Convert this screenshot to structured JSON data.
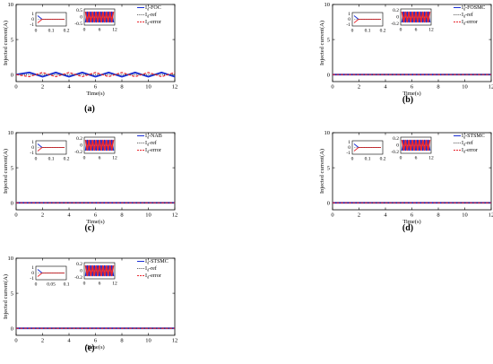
{
  "figure": {
    "panels": [
      {
        "id": "a",
        "caption": "(a)",
        "method": "FOC"
      },
      {
        "id": "b",
        "caption": "(b)",
        "method": "FOSMC"
      },
      {
        "id": "c",
        "caption": "(c)",
        "method": "NAB"
      },
      {
        "id": "d",
        "caption": "(d)",
        "method": "STSMC"
      },
      {
        "id": "e",
        "caption": "(e)",
        "method": "STSMC"
      }
    ]
  },
  "chart_data": [
    {
      "panel": "a",
      "type": "line",
      "ylabel": "Injected current(A)",
      "xlabel": "Time(s)",
      "xlim": [
        0,
        12
      ],
      "ylim": [
        -1,
        10
      ],
      "xticks": [
        "0",
        "2",
        "4",
        "6",
        "8",
        "10",
        "12"
      ],
      "yticks": [
        "0",
        "5",
        "10"
      ],
      "legend": {
        "placement": "top-right",
        "entries": [
          {
            "sym": "I",
            "sub": "d",
            "rest": "FOC",
            "color": "#1a2fd6",
            "style": "solid"
          },
          {
            "sym": "I",
            "sub": "d",
            "rest": "ref",
            "color": "#444444",
            "style": "dotted"
          },
          {
            "sym": "I",
            "sub": "d",
            "rest": "error",
            "color": "#e8282f",
            "style": "dashed"
          }
        ]
      },
      "series": [
        {
          "name": "FOC",
          "color": "#1a2fd6",
          "x": [
            0,
            1,
            2,
            3,
            4,
            5,
            6,
            7,
            8,
            9,
            10,
            11,
            12
          ],
          "values": [
            0,
            0.3,
            -0.3,
            0.3,
            -0.3,
            0.3,
            -0.3,
            0.3,
            -0.3,
            0.3,
            -0.3,
            0.3,
            -0.3
          ]
        },
        {
          "name": "ref",
          "color": "#444444",
          "x": [
            0,
            12
          ],
          "values": [
            0,
            0
          ]
        },
        {
          "name": "error",
          "color": "#e8282f",
          "x": [
            0,
            1,
            2,
            3,
            4,
            5,
            6,
            7,
            8,
            9,
            10,
            11,
            12
          ],
          "values": [
            0,
            -0.3,
            0.3,
            -0.3,
            0.3,
            -0.3,
            0.3,
            -0.3,
            0.3,
            -0.3,
            0.3,
            -0.3,
            0.3
          ]
        }
      ],
      "inset1": {
        "xticks": [
          "0",
          "0.1",
          "0.2"
        ],
        "yticks": [
          "1",
          "0",
          "-1"
        ]
      },
      "inset2": {
        "xticks": [
          "0",
          "6",
          "12"
        ],
        "yticks": [
          "0.5",
          "0",
          "-0.5"
        ]
      }
    },
    {
      "panel": "b",
      "type": "line",
      "ylabel": "Injected current(A)",
      "xlabel": "Time(s)",
      "xlim": [
        0,
        12
      ],
      "ylim": [
        -1,
        10
      ],
      "xticks": [
        "0",
        "2",
        "4",
        "6",
        "8",
        "10",
        "12"
      ],
      "yticks": [
        "0",
        "5",
        "10"
      ],
      "legend": {
        "placement": "top-right",
        "entries": [
          {
            "sym": "I",
            "sub": "d",
            "rest": "FOSMC",
            "color": "#1a2fd6",
            "style": "solid"
          },
          {
            "sym": "I",
            "sub": "d",
            "rest": "ref",
            "color": "#444444",
            "style": "dotted"
          },
          {
            "sym": "I",
            "sub": "d",
            "rest": "error",
            "color": "#e8282f",
            "style": "dashed"
          }
        ]
      },
      "series": [
        {
          "name": "FOSMC",
          "color": "#1a2fd6",
          "x": [
            0,
            12
          ],
          "values": [
            0,
            0
          ]
        },
        {
          "name": "ref",
          "color": "#444444",
          "x": [
            0,
            12
          ],
          "values": [
            0,
            0
          ]
        },
        {
          "name": "error",
          "color": "#e8282f",
          "x": [
            0,
            12
          ],
          "values": [
            0,
            0
          ]
        }
      ],
      "inset1": {
        "xticks": [
          "0",
          "0.1",
          "0.2"
        ],
        "yticks": [
          "1",
          "0",
          "-1"
        ]
      },
      "inset2": {
        "xticks": [
          "0",
          "6",
          "12"
        ],
        "yticks": [
          "0.2",
          "0",
          "-0.2"
        ]
      }
    },
    {
      "panel": "c",
      "type": "line",
      "ylabel": "Injected current(A)",
      "xlabel": "Time(s)",
      "xlim": [
        0,
        12
      ],
      "ylim": [
        -1,
        10
      ],
      "xticks": [
        "0",
        "2",
        "4",
        "6",
        "8",
        "10",
        "12"
      ],
      "yticks": [
        "0",
        "5",
        "10"
      ],
      "legend": {
        "placement": "top-right",
        "entries": [
          {
            "sym": "I",
            "sub": "d",
            "rest": "NAB",
            "color": "#1a2fd6",
            "style": "solid"
          },
          {
            "sym": "I",
            "sub": "d",
            "rest": "ref",
            "color": "#444444",
            "style": "dotted"
          },
          {
            "sym": "I",
            "sub": "d",
            "rest": "error",
            "color": "#e8282f",
            "style": "dashed"
          }
        ]
      },
      "series": [
        {
          "name": "NAB",
          "color": "#1a2fd6",
          "x": [
            0,
            12
          ],
          "values": [
            0,
            0
          ]
        },
        {
          "name": "ref",
          "color": "#444444",
          "x": [
            0,
            12
          ],
          "values": [
            0,
            0
          ]
        },
        {
          "name": "error",
          "color": "#e8282f",
          "x": [
            0,
            12
          ],
          "values": [
            0,
            0
          ]
        }
      ],
      "inset1": {
        "xticks": [
          "0",
          "0.1",
          "0.2"
        ],
        "yticks": [
          "1",
          "0",
          "-1"
        ]
      },
      "inset2": {
        "xticks": [
          "0",
          "6",
          "12"
        ],
        "yticks": [
          "0.2",
          "0",
          "-0.2"
        ]
      }
    },
    {
      "panel": "d",
      "type": "line",
      "ylabel": "Injected current(A)",
      "xlabel": "Time(s)",
      "xlim": [
        0,
        12
      ],
      "ylim": [
        -1,
        10
      ],
      "xticks": [
        "0",
        "2",
        "4",
        "6",
        "8",
        "10",
        "12"
      ],
      "yticks": [
        "0",
        "5",
        "10"
      ],
      "legend": {
        "placement": "top-right",
        "entries": [
          {
            "sym": "I",
            "sub": "d",
            "rest": "STSMC",
            "color": "#1a2fd6",
            "style": "solid"
          },
          {
            "sym": "I",
            "sub": "d",
            "rest": "ref",
            "color": "#444444",
            "style": "dotted"
          },
          {
            "sym": "I",
            "sub": "d",
            "rest": "error",
            "color": "#e8282f",
            "style": "dashed"
          }
        ]
      },
      "series": [
        {
          "name": "STSMC",
          "color": "#1a2fd6",
          "x": [
            0,
            12
          ],
          "values": [
            0,
            0
          ]
        },
        {
          "name": "ref",
          "color": "#444444",
          "x": [
            0,
            12
          ],
          "values": [
            0,
            0
          ]
        },
        {
          "name": "error",
          "color": "#e8282f",
          "x": [
            0,
            12
          ],
          "values": [
            0,
            0
          ]
        }
      ],
      "inset1": {
        "xticks": [
          "0",
          "0.1",
          "0.2"
        ],
        "yticks": [
          "1",
          "0",
          "-1"
        ]
      },
      "inset2": {
        "xticks": [
          "0",
          "6",
          "12"
        ],
        "yticks": [
          "0.2",
          "0",
          "-0.2"
        ]
      }
    },
    {
      "panel": "e",
      "type": "line",
      "ylabel": "Injected current(A)",
      "xlabel": "Time(s)",
      "xlim": [
        0,
        12
      ],
      "ylim": [
        -1,
        10
      ],
      "xticks": [
        "0",
        "2",
        "4",
        "6",
        "8",
        "10",
        "12"
      ],
      "yticks": [
        "0",
        "5",
        "10"
      ],
      "legend": {
        "placement": "top-right",
        "entries": [
          {
            "sym": "I",
            "sub": "d",
            "rest": "STSMC",
            "color": "#1a2fd6",
            "style": "solid"
          },
          {
            "sym": "I",
            "sub": "d",
            "rest": "ref",
            "color": "#444444",
            "style": "dotted"
          },
          {
            "sym": "I",
            "sub": "d",
            "rest": "error",
            "color": "#e8282f",
            "style": "dashed"
          }
        ]
      },
      "series": [
        {
          "name": "STSMC",
          "color": "#1a2fd6",
          "x": [
            0,
            12
          ],
          "values": [
            0,
            0
          ]
        },
        {
          "name": "ref",
          "color": "#444444",
          "x": [
            0,
            12
          ],
          "values": [
            0,
            0
          ]
        },
        {
          "name": "error",
          "color": "#e8282f",
          "x": [
            0,
            12
          ],
          "values": [
            0,
            0
          ]
        }
      ],
      "inset1": {
        "xticks": [
          "0",
          "0.05",
          "0.1"
        ],
        "yticks": [
          "1",
          "0",
          "-1"
        ]
      },
      "inset2": {
        "xticks": [
          "0",
          "6",
          "12"
        ],
        "yticks": [
          "0.2",
          "0",
          "-0.2"
        ]
      }
    }
  ]
}
